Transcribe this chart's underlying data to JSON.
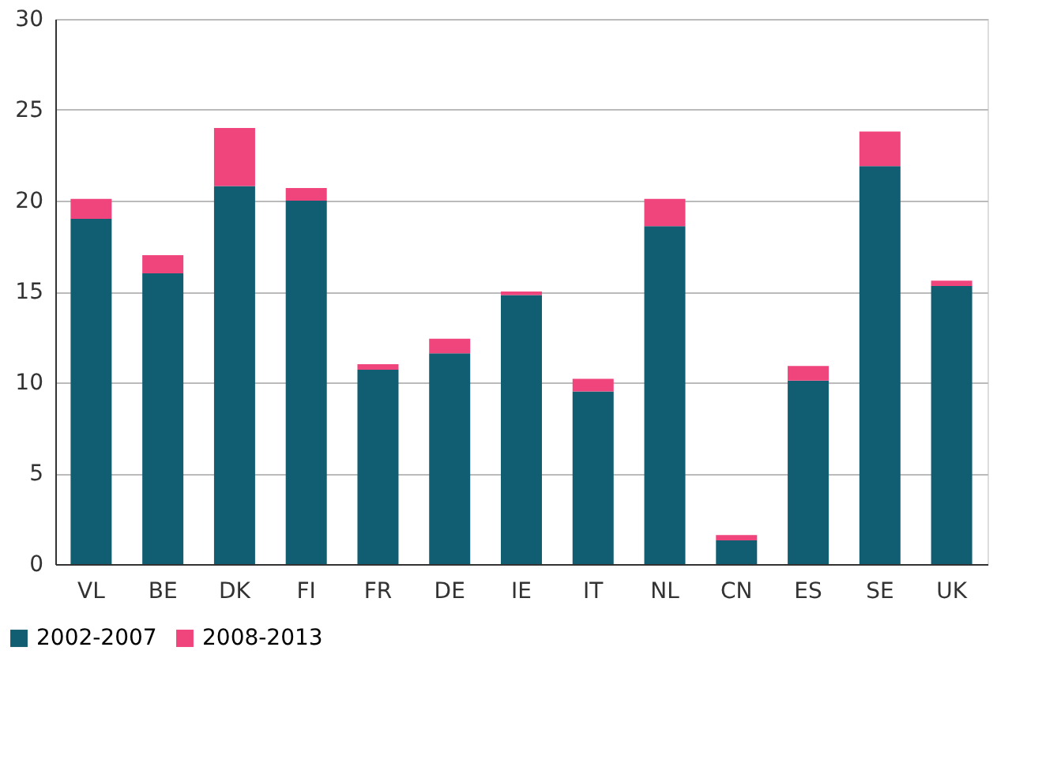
{
  "chart_data": {
    "type": "bar",
    "stacked": true,
    "categories": [
      "VL",
      "BE",
      "DK",
      "FI",
      "FR",
      "DE",
      "IE",
      "IT",
      "NL",
      "CN",
      "ES",
      "SE",
      "UK"
    ],
    "series": [
      {
        "name": "2002-2007",
        "color": "#115e73",
        "values": [
          19.0,
          16.0,
          20.8,
          20.0,
          10.7,
          11.6,
          14.8,
          9.5,
          18.6,
          1.3,
          10.1,
          21.9,
          15.3
        ]
      },
      {
        "name": "2008-2013",
        "color": "#f0447c",
        "values": [
          1.1,
          1.0,
          3.2,
          0.7,
          0.3,
          0.8,
          0.2,
          0.7,
          1.5,
          0.3,
          0.8,
          1.9,
          0.3
        ]
      }
    ],
    "ylim": [
      0,
      30
    ],
    "yticks": [
      0,
      5,
      10,
      15,
      20,
      25,
      30
    ],
    "grid": "y",
    "legend": "bottom left"
  }
}
